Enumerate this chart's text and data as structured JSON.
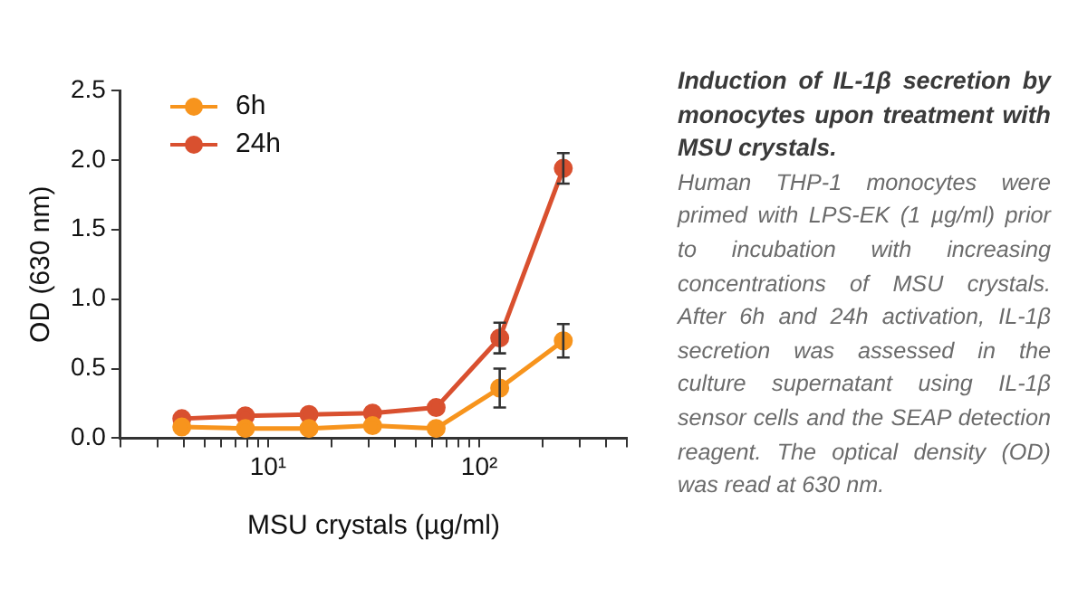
{
  "chart_data": {
    "type": "line",
    "title": "Induction of IL-1β secretion by monocytes upon treatment with MSU crystals.",
    "annotations": [
      "Human THP-1 monocytes were primed with LPS-EK (1 µg/ml) prior to incubation with increasing concentrations of MSU crystals. After 6h and 24h activation, IL-1β secretion was assessed in the culture supernatant using IL-1β sensor cells and the SEAP detection reagent. The optical density (OD) was read at 630 nm."
    ],
    "xlabel": "MSU crystals (µg/ml)",
    "ylabel": "OD (630 nm)",
    "x": [
      3.90625,
      7.8125,
      15.625,
      31.25,
      62.5,
      125,
      250
    ],
    "series": [
      {
        "name": "6h",
        "color": "#f7941d",
        "values": [
          0.08,
          0.07,
          0.07,
          0.09,
          0.07,
          0.36,
          0.7
        ],
        "errors": [
          null,
          null,
          null,
          null,
          null,
          0.14,
          0.12
        ]
      },
      {
        "name": "24h",
        "color": "#d9502f",
        "values": [
          0.14,
          0.16,
          0.17,
          0.18,
          0.22,
          0.72,
          1.94
        ],
        "errors": [
          null,
          null,
          null,
          null,
          null,
          0.11,
          0.11
        ]
      }
    ],
    "log": "x",
    "xlim": [
      2,
      500
    ],
    "xticks": [
      {
        "value": 2,
        "label": null
      },
      {
        "value": 3,
        "label": null
      },
      {
        "value": 4,
        "label": null
      },
      {
        "value": 5,
        "label": null
      },
      {
        "value": 6,
        "label": null
      },
      {
        "value": 7,
        "label": null
      },
      {
        "value": 8,
        "label": null
      },
      {
        "value": 9,
        "label": null
      },
      {
        "value": 10,
        "label": "10¹"
      },
      {
        "value": 20,
        "label": null
      },
      {
        "value": 30,
        "label": null
      },
      {
        "value": 40,
        "label": null
      },
      {
        "value": 50,
        "label": null
      },
      {
        "value": 60,
        "label": null
      },
      {
        "value": 70,
        "label": null
      },
      {
        "value": 80,
        "label": null
      },
      {
        "value": 90,
        "label": null
      },
      {
        "value": 100,
        "label": "10²"
      },
      {
        "value": 200,
        "label": null
      },
      {
        "value": 300,
        "label": null
      },
      {
        "value": 400,
        "label": null
      },
      {
        "value": 500,
        "label": null
      }
    ],
    "ylim": [
      0,
      2.5
    ],
    "yticks": [
      {
        "value": 0,
        "label": "0.0"
      },
      0.5,
      {
        "value": 1,
        "label": "1.0"
      },
      1.5,
      {
        "value": 2,
        "label": "2.0"
      },
      2.5
    ],
    "grid": false,
    "legend": "top left",
    "marker": "circle",
    "line_style": "solid"
  }
}
